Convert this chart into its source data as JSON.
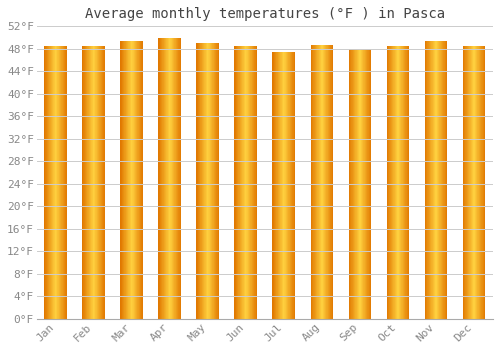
{
  "title": "Average monthly temperatures (°F ) in Pasca",
  "months": [
    "Jan",
    "Feb",
    "Mar",
    "Apr",
    "May",
    "Jun",
    "Jul",
    "Aug",
    "Sep",
    "Oct",
    "Nov",
    "Dec"
  ],
  "values": [
    48.5,
    48.5,
    49.3,
    50.0,
    49.0,
    48.5,
    47.5,
    48.7,
    48.0,
    48.5,
    49.3,
    48.5
  ],
  "ylim": [
    0,
    52
  ],
  "yticks": [
    0,
    4,
    8,
    12,
    16,
    20,
    24,
    28,
    32,
    36,
    40,
    44,
    48,
    52
  ],
  "ytick_labels": [
    "0°F",
    "4°F",
    "8°F",
    "12°F",
    "16°F",
    "20°F",
    "24°F",
    "28°F",
    "32°F",
    "36°F",
    "40°F",
    "44°F",
    "48°F",
    "52°F"
  ],
  "bar_color_dark": "#E07800",
  "bar_color_mid": "#FFD040",
  "bar_color_light": "#FFE060",
  "background_color": "#FFFFFF",
  "plot_bg_color": "#FFFFFF",
  "grid_color": "#CCCCCC",
  "title_fontsize": 10,
  "tick_fontsize": 8,
  "title_color": "#444444",
  "tick_color": "#888888",
  "bar_width": 0.6
}
